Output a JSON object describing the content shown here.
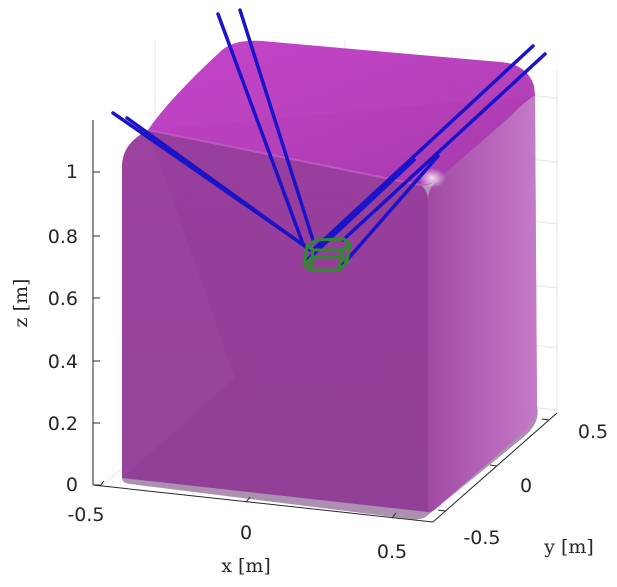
{
  "chart_data": {
    "type": "3d-surface",
    "xlabel": "x [m]",
    "ylabel": "y [m]",
    "zlabel": "z [m]",
    "x_ticks": [
      "-0.5",
      "0",
      "0.5"
    ],
    "y_ticks": [
      "-0.5",
      "0",
      "0.5"
    ],
    "z_ticks": [
      "0",
      "0.2",
      "0.4",
      "0.6",
      "0.8",
      "1"
    ],
    "xlim": [
      -0.6,
      0.6
    ],
    "ylim": [
      -0.6,
      0.6
    ],
    "zlim": [
      0,
      1.1
    ],
    "grid": true,
    "series": [
      {
        "kind": "workspace-surface",
        "color": "#b23bb6"
      },
      {
        "kind": "cables",
        "color": "#1a14c8",
        "count": 8,
        "platform_position": [
          0,
          0,
          0.74
        ]
      },
      {
        "kind": "platform",
        "color": "#2e8b2e"
      }
    ]
  }
}
